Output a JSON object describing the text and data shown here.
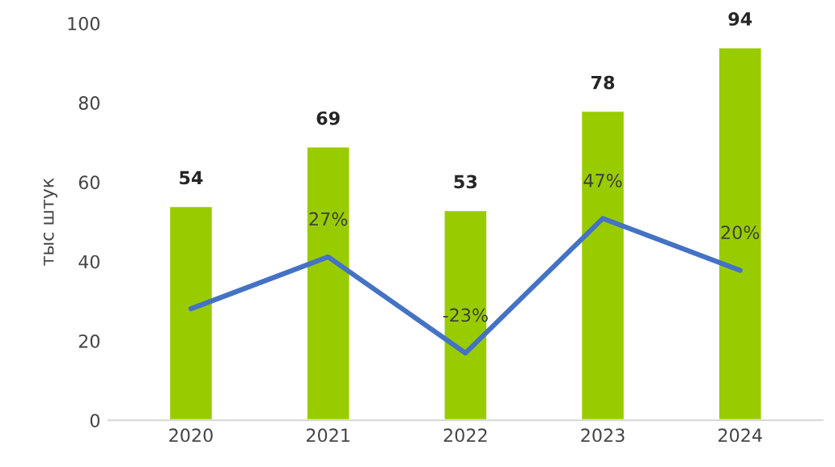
{
  "chart_data": {
    "type": "bar",
    "ylabel": "тыс штук",
    "categories": [
      "2020",
      "2021",
      "2022",
      "2023",
      "2024"
    ],
    "series": [
      {
        "color": "#99cc00",
        "values": [
          54,
          69,
          53,
          78,
          94
        ],
        "value_labels": [
          "54",
          "69",
          "53",
          "78",
          "94"
        ]
      },
      {
        "type": "line",
        "axis": "y2",
        "color": "#4472c4",
        "values": [
          0,
          27,
          -23,
          47,
          20
        ],
        "value_labels": [
          null,
          "27%",
          "-23%",
          "47%",
          "20%"
        ]
      }
    ],
    "ylim": [
      0,
      100
    ],
    "yticks": [
      0,
      20,
      40,
      60,
      80,
      100
    ],
    "grid": false,
    "legend": false
  }
}
